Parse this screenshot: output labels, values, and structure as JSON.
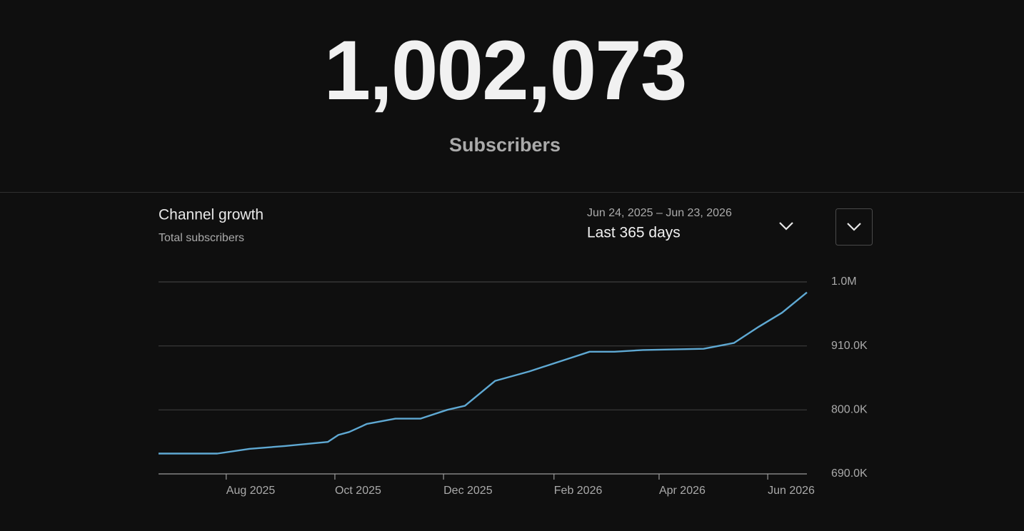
{
  "header": {
    "count": "1,002,073",
    "label": "Subscribers"
  },
  "controls": {
    "date_range": "Jun 24, 2025 – Jun 23, 2026",
    "period": "Last 365 days"
  },
  "chart_data": {
    "type": "line",
    "title": "Channel growth",
    "subtitle": "Total subscribers",
    "x": [
      "2025-06-24",
      "2025-07-27",
      "2025-08-14",
      "2025-09-03",
      "2025-09-27",
      "2025-10-03",
      "2025-10-09",
      "2025-10-19",
      "2025-11-04",
      "2025-11-18",
      "2025-12-03",
      "2025-12-13",
      "2025-12-30",
      "2026-01-18",
      "2026-02-11",
      "2026-02-21",
      "2026-03-07",
      "2026-03-23",
      "2026-04-26",
      "2026-05-13",
      "2026-05-27",
      "2026-06-09",
      "2026-06-23"
    ],
    "series": [
      {
        "color": "#5fa9d3",
        "values": [
          725000,
          725000,
          733000,
          738000,
          745000,
          757000,
          762000,
          776000,
          785000,
          785000,
          800000,
          807000,
          850000,
          866000,
          890000,
          900000,
          900000,
          903000,
          905000,
          915000,
          943000,
          967000,
          1002000
        ]
      }
    ],
    "xlim": [
      "2025-06-24",
      "2026-06-23"
    ],
    "xticks": [
      {
        "value": "2025-08-01",
        "label": "Aug 2025"
      },
      {
        "value": "2025-10-01",
        "label": "Oct 2025"
      },
      {
        "value": "2025-12-01",
        "label": "Dec 2025"
      },
      {
        "value": "2026-02-01",
        "label": "Feb 2026"
      },
      {
        "value": "2026-04-01",
        "label": "Apr 2026"
      },
      {
        "value": "2026-06-01",
        "label": "Jun 2026"
      }
    ],
    "ylim": [
      690000,
      1020000
    ],
    "yticks": [
      {
        "value": 690000,
        "label": "690.0K"
      },
      {
        "value": 800000,
        "label": "800.0K"
      },
      {
        "value": 910000,
        "label": "910.0K"
      },
      {
        "value": 1020000,
        "label": "1.0M"
      }
    ],
    "grid": true
  }
}
